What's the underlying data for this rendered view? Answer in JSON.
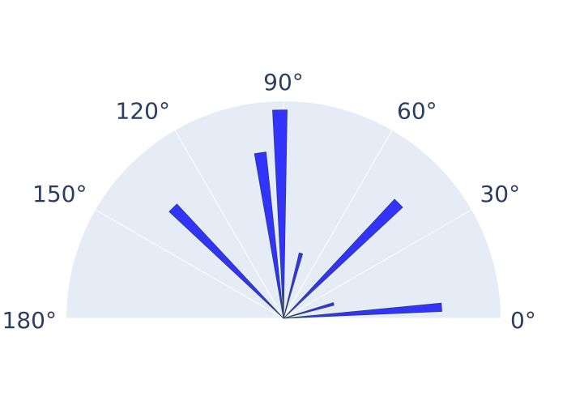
{
  "chart_data": {
    "type": "barpolar",
    "title": "",
    "angular_axis": {
      "range": [
        0,
        180
      ],
      "tick_labels": [
        "0°",
        "30°",
        "60°",
        "90°",
        "120°",
        "150°",
        "180°"
      ],
      "tick_values": [
        0,
        30,
        60,
        90,
        120,
        150,
        180
      ],
      "grid": true
    },
    "radial_axis": {
      "range": [
        0,
        1.0
      ],
      "visible": false
    },
    "series": [
      {
        "color": "#3333ff",
        "bars": [
          {
            "theta": 4,
            "width": 3,
            "r": 0.73
          },
          {
            "theta": 16,
            "width": 3,
            "r": 0.24
          },
          {
            "theta": 45,
            "width": 4,
            "r": 0.75
          },
          {
            "theta": 75,
            "width": 3,
            "r": 0.31
          },
          {
            "theta": 91,
            "width": 4,
            "r": 0.96
          },
          {
            "theta": 98,
            "width": 4,
            "r": 0.77
          },
          {
            "theta": 135,
            "width": 4,
            "r": 0.72
          }
        ]
      }
    ],
    "colors": {
      "plot_background": "#e5ecf6",
      "grid": "#ffffff",
      "tick_text": "#2a3f5f"
    }
  }
}
